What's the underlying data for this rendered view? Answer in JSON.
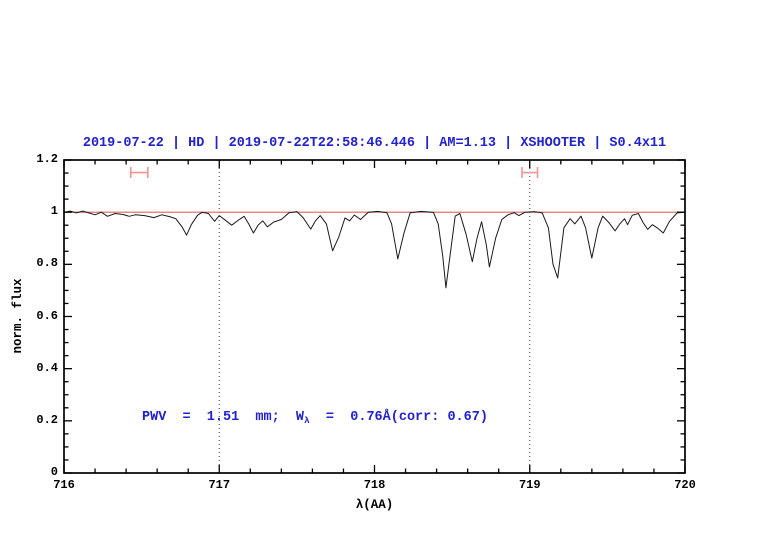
{
  "title": {
    "text": "2019-07-22 | HD | 2019-07-22T22:58:46.446 | AM=1.13 | XSHOOTER | S0.4x11",
    "color": "#2222cc"
  },
  "annotation": {
    "pre": "PWV  =  1.51  mm;  W",
    "sub": "λ",
    "post": "  =  0.76Å(corr: 0.67)",
    "color": "#2222cc"
  },
  "chart_data": {
    "type": "line",
    "title": "2019-07-22 | HD | 2019-07-22T22:58:46.446 | AM=1.13 | XSHOOTER | S0.4x11",
    "xlabel": "λ(AA)",
    "ylabel": "norm. flux",
    "xlim": [
      716,
      720
    ],
    "ylim": [
      0,
      1.2
    ],
    "grid": false,
    "x_ticks": [
      {
        "v": 716,
        "label": "716"
      },
      {
        "v": 717,
        "label": "717"
      },
      {
        "v": 718,
        "label": "718"
      },
      {
        "v": 719,
        "label": "719"
      },
      {
        "v": 720,
        "label": "720"
      }
    ],
    "x_minor_step": 0.2,
    "y_ticks": [
      {
        "v": 0,
        "label": "0"
      },
      {
        "v": 0.2,
        "label": "0.2"
      },
      {
        "v": 0.4,
        "label": "0.4"
      },
      {
        "v": 0.6,
        "label": "0.6"
      },
      {
        "v": 0.8,
        "label": "0.8"
      },
      {
        "v": 1,
        "label": "1"
      },
      {
        "v": 1.2,
        "label": "1.2"
      }
    ],
    "y_minor_step": 0.05,
    "dotted_vlines": [
      717,
      719
    ],
    "continuum_line": {
      "y": 1.0,
      "color": "#e06060"
    },
    "range_markers": [
      {
        "x1": 716.43,
        "x2": 716.54,
        "y": 1.152,
        "color": "#f09494"
      },
      {
        "x1": 718.95,
        "x2": 719.05,
        "y": 1.152,
        "color": "#f09494"
      }
    ],
    "series": [
      {
        "name": "telluric-spectrum",
        "color": "#1a1a1a",
        "points": [
          [
            716.0,
            1.0
          ],
          [
            716.04,
            1.004
          ],
          [
            716.08,
            0.997
          ],
          [
            716.12,
            1.004
          ],
          [
            716.16,
            0.997
          ],
          [
            716.2,
            0.99
          ],
          [
            716.24,
            1.0
          ],
          [
            716.28,
            0.984
          ],
          [
            716.33,
            0.995
          ],
          [
            716.38,
            0.991
          ],
          [
            716.42,
            0.984
          ],
          [
            716.46,
            0.99
          ],
          [
            716.52,
            0.987
          ],
          [
            716.58,
            0.979
          ],
          [
            716.63,
            0.99
          ],
          [
            716.68,
            0.983
          ],
          [
            716.72,
            0.975
          ],
          [
            716.76,
            0.944
          ],
          [
            716.79,
            0.912
          ],
          [
            716.82,
            0.952
          ],
          [
            716.86,
            0.988
          ],
          [
            716.89,
            1.0
          ],
          [
            716.93,
            0.995
          ],
          [
            716.97,
            0.965
          ],
          [
            717.0,
            0.987
          ],
          [
            717.04,
            0.969
          ],
          [
            717.08,
            0.95
          ],
          [
            717.12,
            0.968
          ],
          [
            717.16,
            0.984
          ],
          [
            717.19,
            0.955
          ],
          [
            717.22,
            0.92
          ],
          [
            717.25,
            0.95
          ],
          [
            717.28,
            0.967
          ],
          [
            717.31,
            0.944
          ],
          [
            717.35,
            0.962
          ],
          [
            717.4,
            0.972
          ],
          [
            717.45,
            0.998
          ],
          [
            717.5,
            1.002
          ],
          [
            717.54,
            0.979
          ],
          [
            717.59,
            0.935
          ],
          [
            717.62,
            0.967
          ],
          [
            717.65,
            0.987
          ],
          [
            717.69,
            0.955
          ],
          [
            717.73,
            0.852
          ],
          [
            717.77,
            0.905
          ],
          [
            717.81,
            0.978
          ],
          [
            717.84,
            0.967
          ],
          [
            717.87,
            0.989
          ],
          [
            717.91,
            0.972
          ],
          [
            717.96,
            1.0
          ],
          [
            718.02,
            1.003
          ],
          [
            718.08,
            0.998
          ],
          [
            718.11,
            0.955
          ],
          [
            718.15,
            0.821
          ],
          [
            718.19,
            0.92
          ],
          [
            718.23,
            0.998
          ],
          [
            718.3,
            1.003
          ],
          [
            718.38,
            0.999
          ],
          [
            718.41,
            0.955
          ],
          [
            718.44,
            0.83
          ],
          [
            718.46,
            0.71
          ],
          [
            718.49,
            0.85
          ],
          [
            718.52,
            0.985
          ],
          [
            718.55,
            0.995
          ],
          [
            718.59,
            0.915
          ],
          [
            718.63,
            0.81
          ],
          [
            718.66,
            0.9
          ],
          [
            718.69,
            0.963
          ],
          [
            718.72,
            0.875
          ],
          [
            718.74,
            0.79
          ],
          [
            718.78,
            0.9
          ],
          [
            718.82,
            0.972
          ],
          [
            718.86,
            0.99
          ],
          [
            718.9,
            0.998
          ],
          [
            718.93,
            0.987
          ],
          [
            718.97,
            1.0
          ],
          [
            719.03,
            1.002
          ],
          [
            719.08,
            0.997
          ],
          [
            719.12,
            0.94
          ],
          [
            719.15,
            0.8
          ],
          [
            719.18,
            0.748
          ],
          [
            719.22,
            0.94
          ],
          [
            719.26,
            0.975
          ],
          [
            719.29,
            0.955
          ],
          [
            719.33,
            0.985
          ],
          [
            719.36,
            0.94
          ],
          [
            719.4,
            0.824
          ],
          [
            719.44,
            0.94
          ],
          [
            719.47,
            0.985
          ],
          [
            719.51,
            0.96
          ],
          [
            719.55,
            0.928
          ],
          [
            719.58,
            0.955
          ],
          [
            719.61,
            0.975
          ],
          [
            719.63,
            0.952
          ],
          [
            719.66,
            0.988
          ],
          [
            719.7,
            0.995
          ],
          [
            719.73,
            0.96
          ],
          [
            719.76,
            0.934
          ],
          [
            719.79,
            0.952
          ],
          [
            719.82,
            0.94
          ],
          [
            719.86,
            0.92
          ],
          [
            719.9,
            0.965
          ],
          [
            719.95,
            0.997
          ],
          [
            720.0,
            1.0
          ]
        ]
      }
    ]
  }
}
